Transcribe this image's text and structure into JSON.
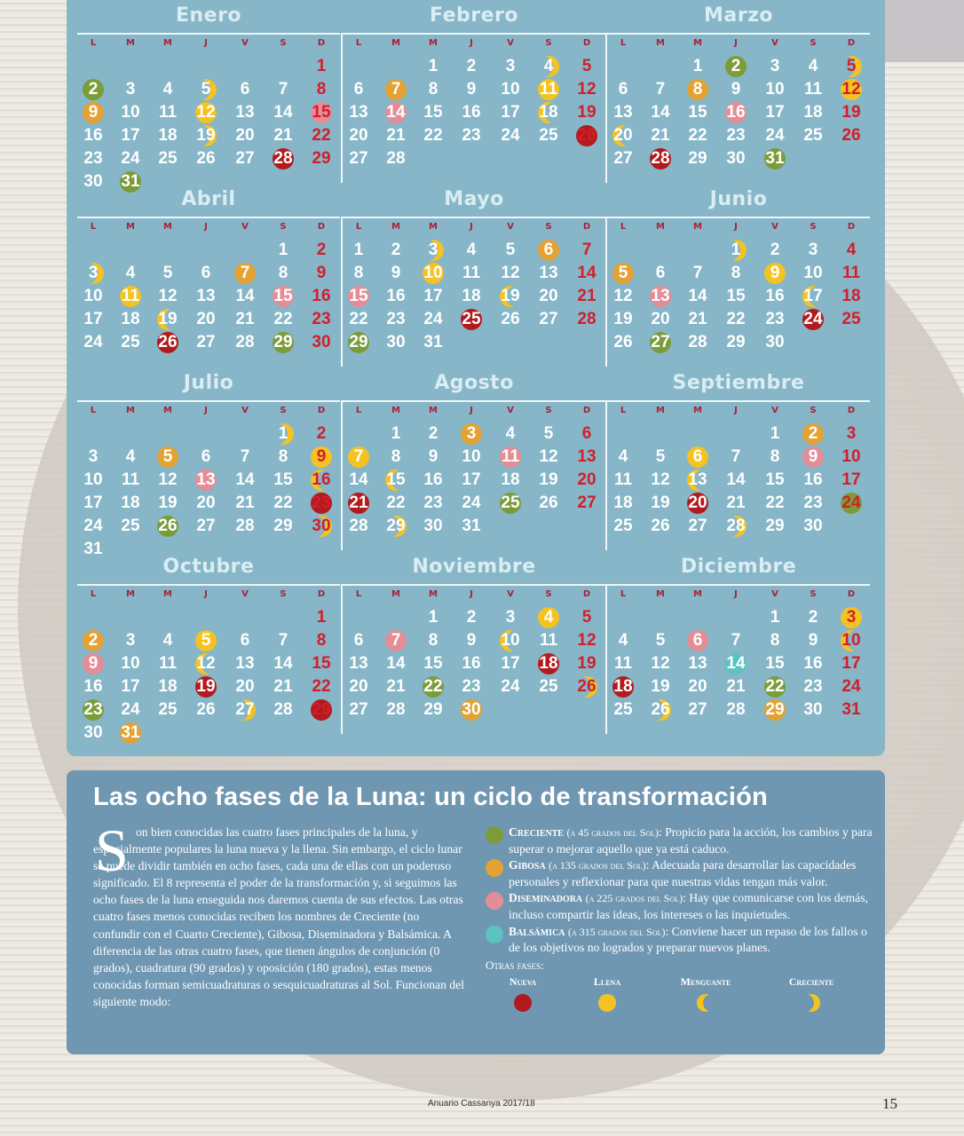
{
  "weekdays": [
    "L",
    "M",
    "M",
    "J",
    "V",
    "S",
    "D"
  ],
  "months": [
    {
      "name": "Enero",
      "first": 6,
      "days": 31,
      "phases": {
        "1": "sun",
        "2": "creciente",
        "5": "llena-crec",
        "9": "gibosa",
        "12": "llena",
        "15": "diseminadora",
        "19": "llena-crec",
        "28": "nueva",
        "31": "creciente"
      }
    },
    {
      "name": "Febrero",
      "first": 2,
      "days": 28,
      "phases": {
        "4": "crecq",
        "7": "gibosa",
        "11": "llena",
        "14": "diseminadora",
        "18": "menguante",
        "26": "nueva"
      }
    },
    {
      "name": "Marzo",
      "first": 2,
      "days": 31,
      "phases": {
        "2": "creciente",
        "5": "crecq",
        "8": "gibosa",
        "12": "llena",
        "16": "diseminadora",
        "20": "menguante",
        "28": "nueva",
        "31": "creciente"
      }
    },
    {
      "name": "Abril",
      "first": 5,
      "days": 30,
      "phases": {
        "3": "crecq",
        "7": "gibosa",
        "11": "llena",
        "15": "diseminadora",
        "19": "menguante",
        "26": "nueva",
        "29": "creciente"
      }
    },
    {
      "name": "Mayo",
      "first": 0,
      "days": 31,
      "phases": {
        "3": "crecq",
        "6": "gibosa",
        "10": "llena",
        "15": "diseminadora",
        "19": "menguante",
        "25": "nueva",
        "29": "creciente"
      }
    },
    {
      "name": "Junio",
      "first": 3,
      "days": 30,
      "phases": {
        "1": "crecq",
        "5": "gibosa",
        "9": "llena",
        "13": "diseminadora",
        "17": "menguante",
        "24": "nueva",
        "27": "creciente"
      }
    },
    {
      "name": "Julio",
      "first": 5,
      "days": 31,
      "phases": {
        "1": "crecq",
        "5": "gibosa",
        "9": "llena",
        "13": "diseminadora",
        "16": "menguante",
        "23": "nueva",
        "26": "creciente",
        "30": "crecq"
      }
    },
    {
      "name": "Agosto",
      "first": 1,
      "days": 31,
      "phases": {
        "3": "gibosa",
        "7": "llena",
        "11": "diseminadora",
        "15": "menguante",
        "21": "nueva",
        "25": "creciente",
        "29": "crecq"
      }
    },
    {
      "name": "Septiembre",
      "first": 4,
      "days": 30,
      "phases": {
        "2": "gibosa",
        "6": "llena",
        "9": "diseminadora",
        "13": "menguante",
        "20": "nueva",
        "24": "creciente",
        "28": "crecq"
      }
    },
    {
      "name": "Octubre",
      "first": 6,
      "days": 31,
      "phases": {
        "2": "gibosa",
        "5": "llena",
        "9": "diseminadora",
        "12": "menguante",
        "19": "nueva",
        "23": "creciente",
        "27": "crecq",
        "29": "nueva",
        "31": "gibosa"
      }
    },
    {
      "name": "Noviembre",
      "first": 2,
      "days": 30,
      "phases": {
        "4": "llena",
        "7": "diseminadora",
        "10": "menguante",
        "18": "nueva",
        "22": "creciente",
        "26": "crecq",
        "30": "gibosa"
      }
    },
    {
      "name": "Diciembre",
      "first": 4,
      "days": 31,
      "phases": {
        "3": "llena",
        "6": "diseminadora",
        "10": "menguante",
        "14": "balsamica",
        "18": "nueva",
        "22": "creciente",
        "26": "crecq",
        "29": "gibosa"
      }
    }
  ],
  "article": {
    "title": "Las ocho fases de la Luna: un ciclo de transformación",
    "dropcap": "S",
    "paragraph": "on bien conocidas las cuatro fases principales de la luna, y especialmente populares la luna nueva y la llena. Sin embargo, el ciclo lunar se puede dividir también en ocho fases, cada una de ellas con un poderoso significado. El 8 representa el poder de la transformación y, si seguimos las ocho fases de la luna enseguida nos daremos cuenta de sus efectos. Las otras cuatro fases menos conocidas reciben los nombres de Creciente (no confundir con el Cuarto Creciente), Gibosa, Diseminadora y Balsámica. A diferencia de las otras cuatro fases, que tienen ángulos de conjunción (0 grados), cuadratura (90 grados) y oposición (180 grados), estas menos conocidas forman semicuadraturas o sesquicuadraturas al Sol. Funcionan del siguiente modo:",
    "phases": [
      {
        "name": "Creciente",
        "angle": "(a 45 grados del Sol)",
        "text": ": Propicio para la acción, los cambios y para superar o mejorar aquello que ya está caduco.",
        "color": "#7c9c3a"
      },
      {
        "name": "Gibosa",
        "angle": "(a 135 grados del Sol)",
        "text": ": Adecuada para desarrollar las capacidades personales y reflexionar para que nuestras vidas tengan más valor.",
        "color": "#e3a231"
      },
      {
        "name": "Diseminadora",
        "angle": "(a 225 grados del Sol)",
        "text": ": Hay que comunicarse con los demás, incluso compartir las ideas, los intereses o las inquietudes.",
        "color": "#e58d96"
      },
      {
        "name": "Balsámica",
        "angle": "(a 315 grados del Sol)",
        "text": ": Conviene hacer un repaso de los fallos o de los objetivos no logrados y preparar nuevos planes.",
        "color": "#5cc3c0"
      }
    ],
    "other_label": "Otras fases:",
    "other_phases": [
      {
        "name": "Nueva",
        "kind": "nueva"
      },
      {
        "name": "Llena",
        "kind": "llena"
      },
      {
        "name": "Menguante",
        "kind": "menguante"
      },
      {
        "name": "Creciente",
        "kind": "crecq"
      }
    ]
  },
  "footer": {
    "text": "Anuario Cassanya 2017/18",
    "page": "15"
  }
}
